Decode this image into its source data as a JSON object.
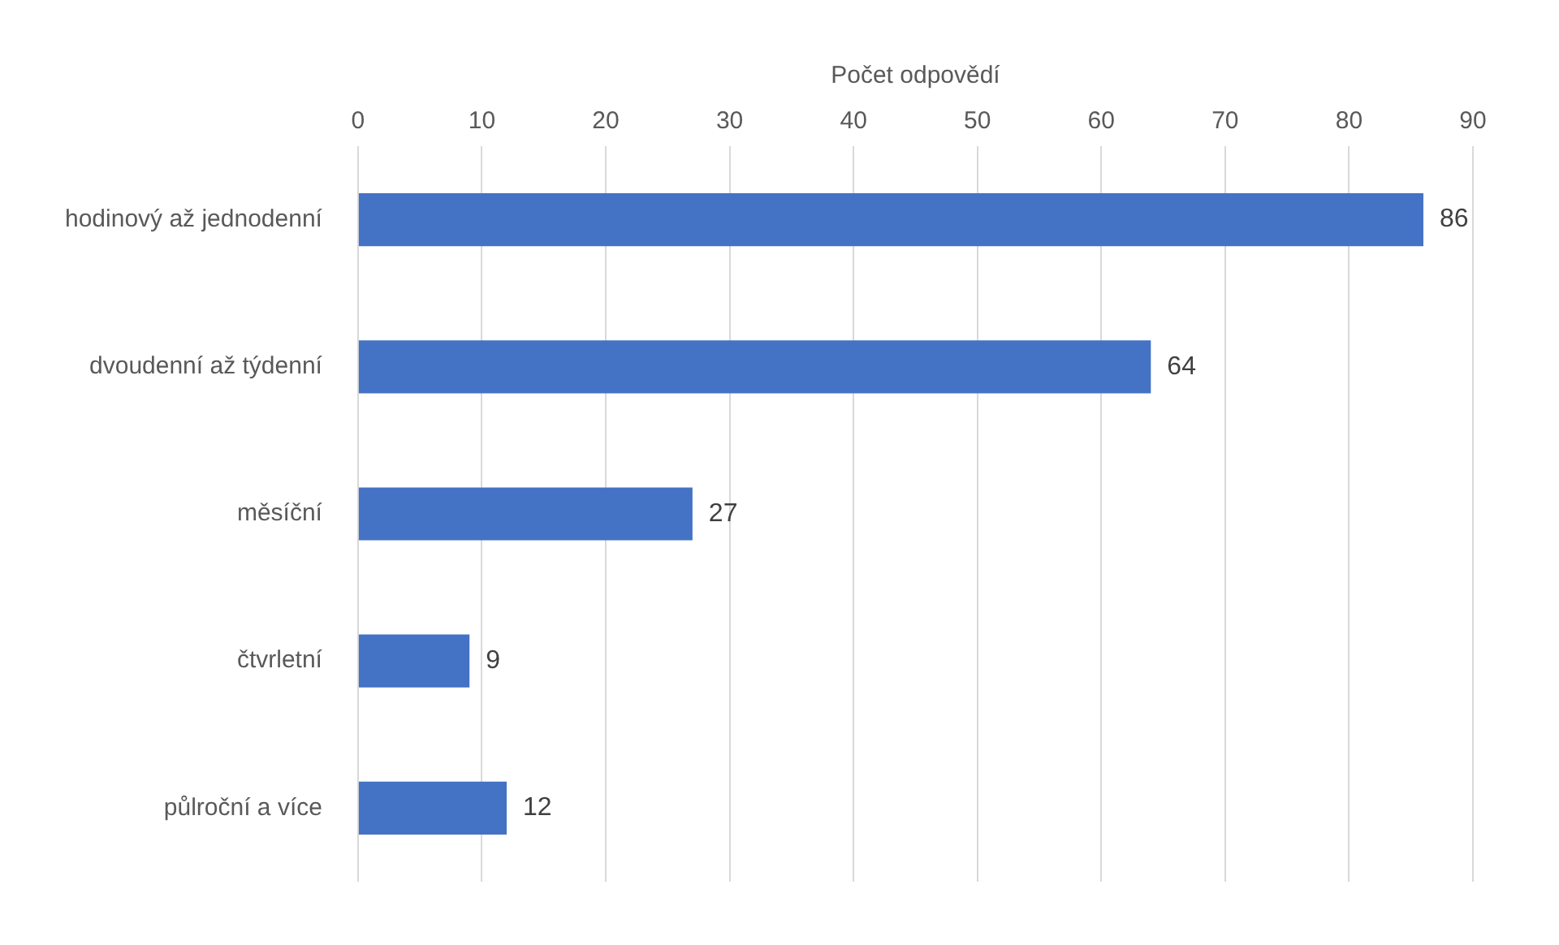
{
  "chart_data": {
    "type": "bar",
    "orientation": "horizontal",
    "xlabel": "Počet odpovědí",
    "categories": [
      "hodinový až jednodenní",
      "dvoudenní až týdenní",
      "měsíční",
      "čtvrletní",
      "půlroční a více"
    ],
    "values": [
      86,
      64,
      27,
      9,
      12
    ],
    "color": "#4472c4",
    "xlim": [
      0,
      90
    ],
    "xticks": [
      0,
      10,
      20,
      30,
      40,
      50,
      60,
      70,
      80,
      90
    ],
    "grid": "x",
    "data_labels": true,
    "legend": false
  }
}
